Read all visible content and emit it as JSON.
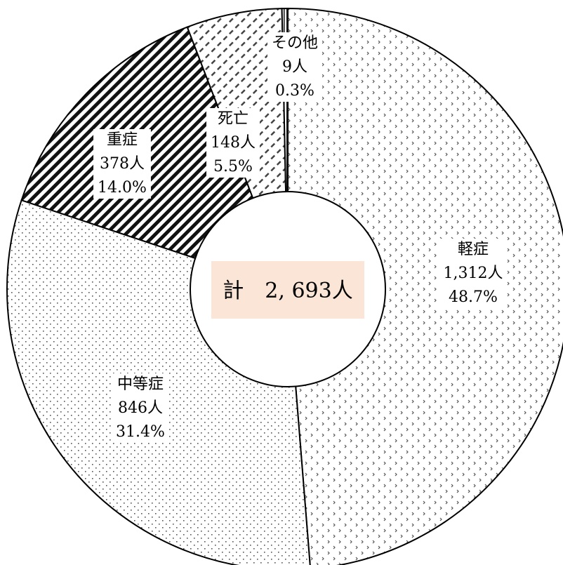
{
  "chart_data": {
    "type": "pie",
    "donut": true,
    "total_label": "計　2, 693人",
    "total_box_color": "#fbe5d6",
    "slices": [
      {
        "name": "軽症",
        "count_label": "1,312人",
        "percent_label": "48.7%",
        "value": 1312,
        "pattern": "diamond-dots"
      },
      {
        "name": "中等症",
        "count_label": "846人",
        "percent_label": "31.4%",
        "value": 846,
        "pattern": "fine-dots"
      },
      {
        "name": "重症",
        "count_label": "378人",
        "percent_label": "14.0%",
        "value": 378,
        "pattern": "dense-diagonal"
      },
      {
        "name": "死亡",
        "count_label": "148人",
        "percent_label": "5.5%",
        "value": 148,
        "pattern": "light-diagonal"
      },
      {
        "name": "その他",
        "count_label": "9人",
        "percent_label": "0.3%",
        "value": 9,
        "pattern": "double-vertical"
      }
    ],
    "start": "12 o'clock",
    "direction": "clockwise"
  }
}
